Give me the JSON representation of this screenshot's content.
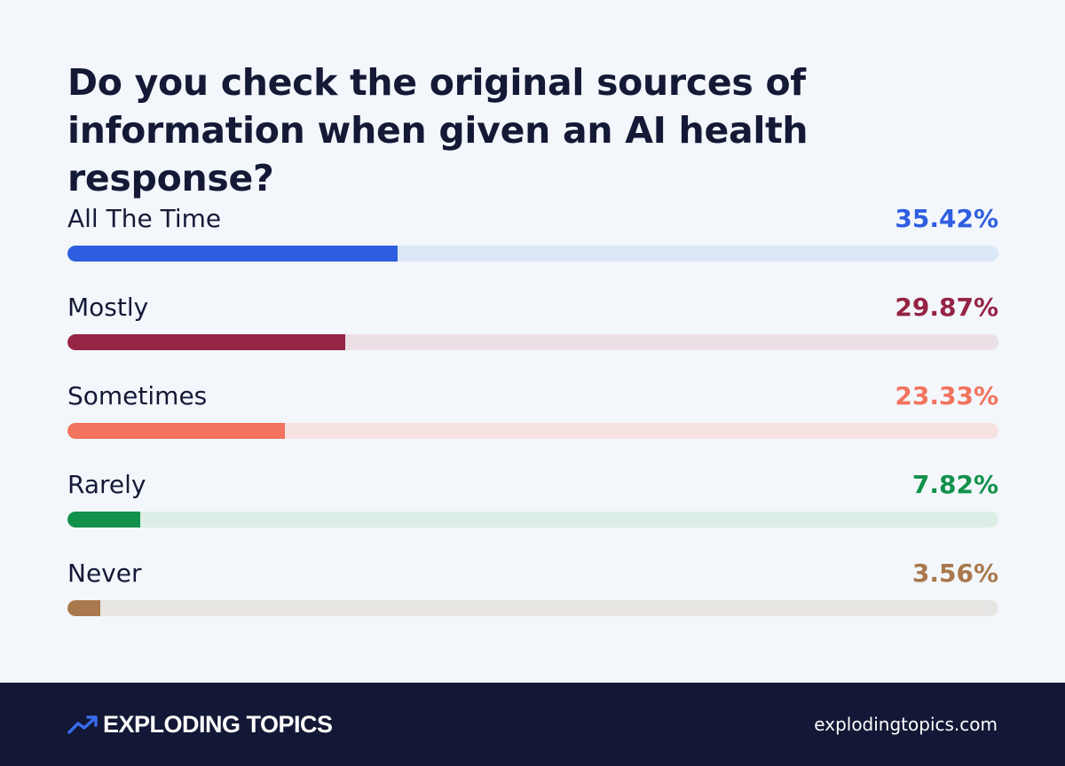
{
  "chart_data": {
    "type": "bar",
    "orientation": "horizontal",
    "title": "Do you check the original sources of information when given an AI health response?",
    "xlim": [
      0,
      100
    ],
    "grid": false,
    "legend": "none",
    "categories": [
      "All The Time",
      "Mostly",
      "Sometimes",
      "Rarely",
      "Never"
    ],
    "values": [
      35.42,
      29.87,
      23.33,
      7.82,
      3.56
    ],
    "value_labels": [
      "35.42%",
      "29.87%",
      "23.33%",
      "7.82%",
      "3.56%"
    ],
    "colors": [
      "#2f5ee0",
      "#962445",
      "#f2735e",
      "#12914a",
      "#a9784c"
    ],
    "track_colors": [
      "#dce7f8",
      "#eadfe4",
      "#f6e3e1",
      "#dceee5",
      "#e8e6e4"
    ]
  },
  "footer": {
    "brand": "EXPLODING TOPICS",
    "brand_icon": "trend-arrow-icon",
    "brand_color": "#3b6cf0",
    "website": "explodingtopics.com"
  }
}
